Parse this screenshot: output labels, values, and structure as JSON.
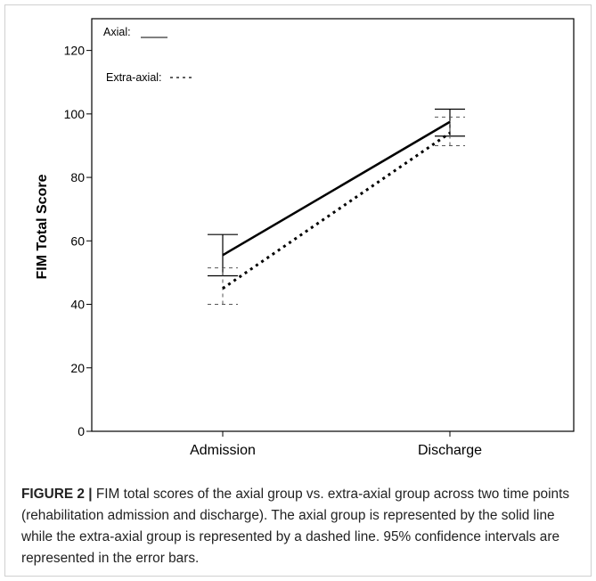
{
  "chart_data": {
    "type": "line",
    "ylabel": "FIM Total Score",
    "xlabel": "",
    "ylim": [
      0,
      130
    ],
    "yticks": [
      0,
      20,
      40,
      60,
      80,
      100,
      120
    ],
    "categories": [
      "Admission",
      "Discharge"
    ],
    "grid": false,
    "legend_position": "top-left",
    "legend": [
      {
        "label": "Axial:",
        "line_glyph": "____"
      },
      {
        "label": "Extra-axial:",
        "line_glyph": "- - -"
      }
    ],
    "series": [
      {
        "name": "Axial",
        "style": "solid",
        "values": [
          55.5,
          97.5
        ],
        "ci_lower": [
          49,
          93
        ],
        "ci_upper": [
          62,
          101.5
        ]
      },
      {
        "name": "Extra-axial",
        "style": "dashed",
        "values": [
          45,
          94
        ],
        "ci_lower": [
          40,
          90
        ],
        "ci_upper": [
          51.5,
          99
        ]
      }
    ],
    "colors": {
      "axes": "#000000",
      "series": "#000000",
      "ci_dashed": "#555555"
    }
  },
  "caption": {
    "label": "FIGURE 2 |",
    "text": " FIM total scores of the axial group vs. extra-axial group across two time points (rehabilitation admission and discharge). The axial group is represented by the solid line while the extra-axial group is represented by a dashed line. 95% confidence intervals are represented in the error bars."
  }
}
